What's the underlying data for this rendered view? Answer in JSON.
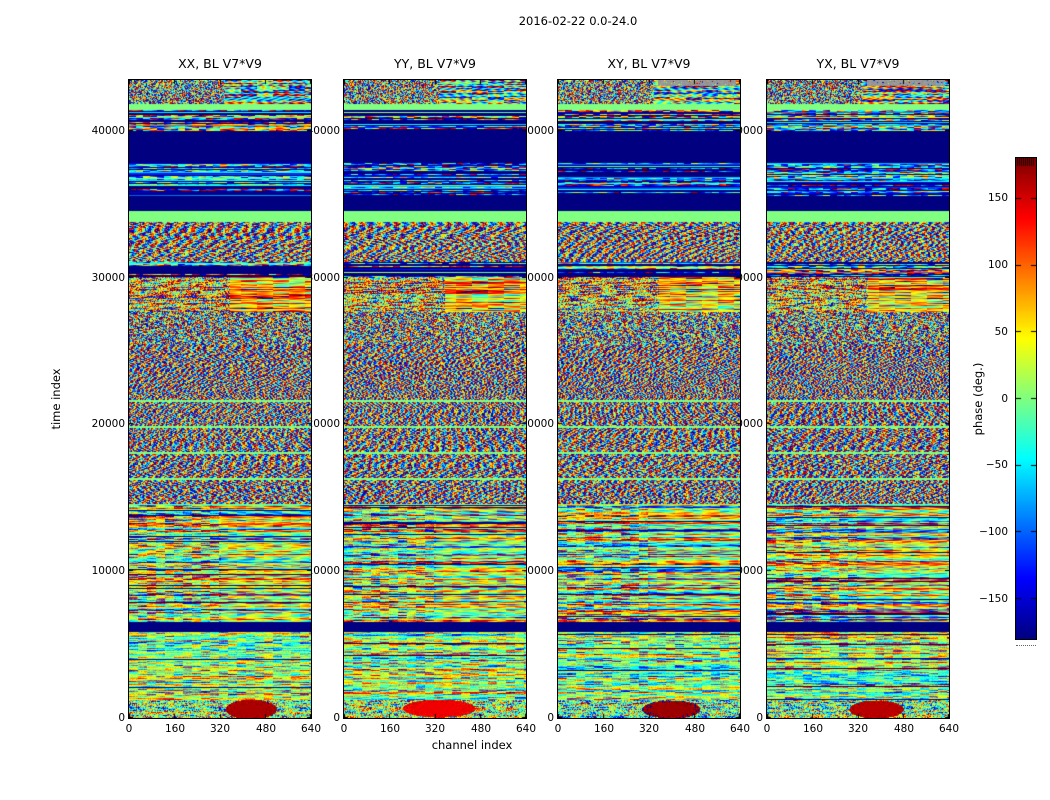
{
  "chart_data": {
    "type": "heatmap",
    "suptitle": "2016-02-22 0.0-24.0",
    "xlabel": "channel index",
    "ylabel": "time index",
    "x_range": [
      0,
      640
    ],
    "y_range": [
      0,
      43475
    ],
    "x_ticks": {
      "labels": [
        "0",
        "160",
        "320",
        "480",
        "640"
      ],
      "values": [
        0,
        160,
        320,
        480,
        640
      ]
    },
    "y_ticks": {
      "labels": [
        "40000",
        "30000",
        "20000",
        "10000",
        "0"
      ],
      "values": [
        40000,
        30000,
        20000,
        10000,
        0
      ]
    },
    "panels": [
      {
        "title": "XX, BL V7*V9",
        "seed": 101,
        "gray_streak": false,
        "blob": {
          "cx": 0.67,
          "cy": 0.5,
          "rx": 0.14,
          "ry": 0.55,
          "phase": 165
        }
      },
      {
        "title": "YY, BL V7*V9",
        "seed": 202,
        "gray_streak": false,
        "blob": {
          "cx": 0.52,
          "cy": 0.45,
          "rx": 0.2,
          "ry": 0.5,
          "phase": 140
        }
      },
      {
        "title": "XY, BL V7*V9",
        "seed": 303,
        "gray_streak": true,
        "blob": {
          "cx": 0.62,
          "cy": 0.5,
          "rx": 0.16,
          "ry": 0.5,
          "phase": 170
        }
      },
      {
        "title": "YX, BL V7*V9",
        "seed": 404,
        "gray_streak": true,
        "blob": {
          "cx": 0.6,
          "cy": 0.5,
          "rx": 0.15,
          "ry": 0.5,
          "phase": 160
        }
      }
    ],
    "colorbar": {
      "label": "phase (deg.)",
      "colormap": "jet",
      "range": [
        -180,
        180
      ],
      "ticks": {
        "labels": [
          "150",
          "100",
          "50",
          "0",
          "−50",
          "−100",
          "−150"
        ],
        "values": [
          150,
          100,
          50,
          0,
          -50,
          -100,
          -150
        ]
      }
    },
    "bands": [
      {
        "t_top": 43475,
        "t_bot": 41840,
        "type": "noise",
        "params": {
          "amp": 140,
          "lx": 10,
          "noise": 150,
          "rowVar": 260,
          "streak": 0.52,
          "gray": true
        }
      },
      {
        "t_top": 41840,
        "t_bot": 41430,
        "type": "solid",
        "value": 0
      },
      {
        "t_top": 41430,
        "t_bot": 40010,
        "type": "rows",
        "params": {
          "navyP": 0.3,
          "baseMin": -160,
          "baseMax": 140,
          "noise": 110,
          "solidP": 0.2,
          "lx": 22
        }
      },
      {
        "t_top": 40010,
        "t_bot": 37820,
        "type": "solid",
        "value": -180
      },
      {
        "t_top": 37820,
        "t_bot": 35570,
        "type": "rows",
        "params": {
          "navyP": 0.32,
          "baseMin": -170,
          "baseMax": -10,
          "noise": 90,
          "solidP": 0.3,
          "lx": 26
        }
      },
      {
        "t_top": 35570,
        "t_bot": 34550,
        "type": "solid",
        "value": -180
      },
      {
        "t_top": 34550,
        "t_bot": 33800,
        "type": "solid",
        "value": 0
      },
      {
        "t_top": 33800,
        "t_bot": 31070,
        "type": "fringes",
        "params": {
          "amp": 150,
          "lx": 14,
          "ly": 26,
          "noise": 70,
          "amp2": 40,
          "base": -20
        }
      },
      {
        "t_top": 31070,
        "t_bot": 30050,
        "type": "rows",
        "params": {
          "navyP": 0.5,
          "baseMin": -140,
          "baseMax": 140,
          "noise": 100,
          "solidP": 0.2,
          "lx": 20
        }
      },
      {
        "t_top": 30050,
        "t_bot": 27670,
        "type": "noise",
        "params": {
          "base": 70,
          "amp": 80,
          "lx": 34,
          "noise": 95,
          "rowVar": 150,
          "streak": 0.55
        }
      },
      {
        "t_top": 27670,
        "t_bot": 25420,
        "type": "noise",
        "params": {
          "base": 10,
          "amp": 150,
          "lx": 15,
          "noise": 120,
          "rowVar": 220
        }
      },
      {
        "t_top": 25420,
        "t_bot": 21670,
        "type": "fringes",
        "params": {
          "amp": 160,
          "lx": 9,
          "ly": 12,
          "noise": 75,
          "amp2": 55
        }
      },
      {
        "t_top": 21670,
        "t_bot": 14520,
        "type": "fringes",
        "params": {
          "amp": 155,
          "lx": 11,
          "ly": 16,
          "noise": 80,
          "amp2": 50,
          "greenEvery": 26
        }
      },
      {
        "t_top": 14520,
        "t_bot": 6540,
        "type": "rowfine",
        "params": {
          "navyP": 0.07,
          "noise": 75,
          "lx": 32,
          "amp": 35,
          "streak": 0.5,
          "palette": [
            0,
            -45,
            55,
            -100,
            115,
            25,
            -20,
            80
          ]
        }
      },
      {
        "t_top": 6540,
        "t_bot": 5860,
        "type": "solid",
        "value": -180
      },
      {
        "t_top": 5860,
        "t_bot": 1230,
        "type": "rowfine",
        "params": {
          "navyP": 0.05,
          "noise": 65,
          "lx": 40,
          "amp": 28,
          "palette": [
            0,
            35,
            -30,
            60,
            -60,
            10,
            90,
            -15
          ]
        }
      },
      {
        "t_top": 1230,
        "t_bot": 0,
        "type": "noise",
        "params": {
          "base": 0,
          "amp": 60,
          "lx": 28,
          "noise": 90,
          "rowVar": 120
        },
        "blob": true
      }
    ]
  }
}
